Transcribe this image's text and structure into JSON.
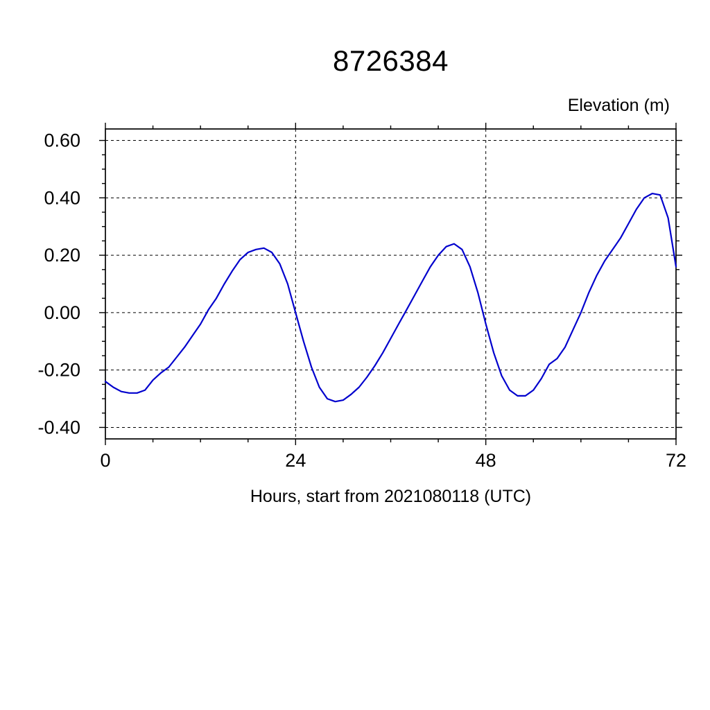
{
  "chart_data": {
    "type": "line",
    "title": "8726384",
    "ylabel": "Elevation (m)",
    "xlabel": "Hours, start from 2021080118 (UTC)",
    "xlim": [
      0,
      72
    ],
    "ylim": [
      -0.44,
      0.64
    ],
    "xticks": {
      "values": [
        0,
        24,
        48,
        72
      ],
      "labels": [
        "0",
        "24",
        "48",
        "72"
      ]
    },
    "yticks": {
      "values": [
        0.6,
        0.4,
        0.2,
        0.0,
        -0.2,
        -0.4
      ],
      "labels": [
        "0.60",
        "0.40",
        "0.20",
        "0.00",
        "-0.20",
        "-0.40"
      ]
    },
    "x_minor_tick_step": 6,
    "y_minor_tick_step": 0.05,
    "grid": {
      "style": "dashed",
      "on_major_ticks": true
    },
    "axis_color": "#000000",
    "series": [
      {
        "name": "elevation",
        "color": "#0000cd",
        "x": [
          0,
          1,
          2,
          3,
          4,
          5,
          6,
          7,
          8,
          9,
          10,
          11,
          12,
          13,
          14,
          15,
          16,
          17,
          18,
          19,
          20,
          21,
          22,
          23,
          24,
          25,
          26,
          27,
          28,
          29,
          30,
          31,
          32,
          33,
          34,
          35,
          36,
          37,
          38,
          39,
          40,
          41,
          42,
          43,
          44,
          45,
          46,
          47,
          48,
          49,
          50,
          51,
          52,
          53,
          54,
          55,
          56,
          57,
          58,
          59,
          60,
          61,
          62,
          63,
          64,
          65,
          66,
          67,
          68,
          69,
          70,
          71,
          72
        ],
        "y": [
          -0.24,
          -0.26,
          -0.275,
          -0.28,
          -0.28,
          -0.27,
          -0.235,
          -0.21,
          -0.19,
          -0.155,
          -0.12,
          -0.08,
          -0.04,
          0.01,
          0.05,
          0.1,
          0.145,
          0.185,
          0.21,
          0.22,
          0.225,
          0.21,
          0.17,
          0.1,
          0.0,
          -0.1,
          -0.19,
          -0.26,
          -0.3,
          -0.31,
          -0.305,
          -0.285,
          -0.26,
          -0.225,
          -0.185,
          -0.14,
          -0.09,
          -0.04,
          0.01,
          0.06,
          0.11,
          0.16,
          0.2,
          0.23,
          0.24,
          0.22,
          0.16,
          0.07,
          -0.04,
          -0.14,
          -0.22,
          -0.27,
          -0.29,
          -0.29,
          -0.27,
          -0.23,
          -0.18,
          -0.16,
          -0.12,
          -0.06,
          0.0,
          0.07,
          0.13,
          0.18,
          0.22,
          0.26,
          0.31,
          0.36,
          0.4,
          0.415,
          0.41,
          0.33,
          0.16
        ]
      }
    ]
  }
}
